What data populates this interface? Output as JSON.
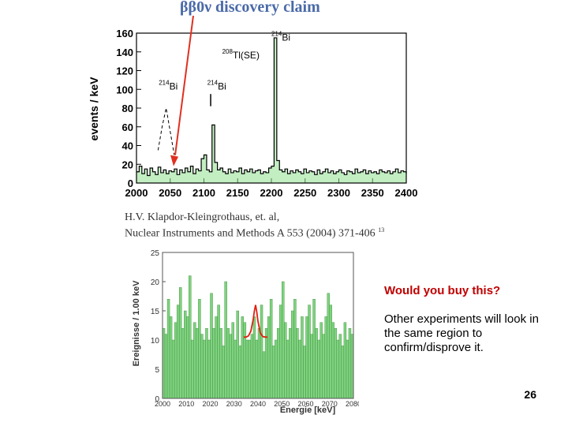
{
  "slide": {
    "title": "ββ0ν discovery claim",
    "citation_line1": "H.V. Klapdor-Kleingrothaus, et. al,",
    "citation_line2": "Nuclear Instruments and Methods A 553 (2004) 371-406",
    "citation_sup": "13",
    "question": "Would you buy this?",
    "body": "Other experiments will look in the same region to confirm/disprove it.",
    "page_number": "26"
  },
  "colors": {
    "title": "#4a6aa8",
    "arrow": "#e03020",
    "question": "#c00000",
    "bars_fill": "#7fd27f",
    "bars_edge": "#3a8a3a",
    "fit_curve": "#e02010"
  },
  "chart_data": [
    {
      "type": "line",
      "title": "",
      "xlabel": "",
      "ylabel": "events / keV",
      "xlim": [
        2000,
        2400
      ],
      "ylim": [
        0,
        160
      ],
      "xticks": [
        2000,
        2050,
        2100,
        2150,
        2200,
        2250,
        2300,
        2350,
        2400
      ],
      "yticks": [
        0,
        20,
        40,
        60,
        80,
        100,
        120,
        140,
        160
      ],
      "series": [
        {
          "name": "spectrum",
          "x": [
            2000,
            2004,
            2008,
            2012,
            2016,
            2020,
            2024,
            2028,
            2032,
            2036,
            2040,
            2044,
            2048,
            2052,
            2056,
            2060,
            2064,
            2068,
            2072,
            2076,
            2080,
            2084,
            2088,
            2092,
            2096,
            2100,
            2104,
            2108,
            2112,
            2116,
            2120,
            2124,
            2128,
            2132,
            2136,
            2140,
            2144,
            2148,
            2152,
            2156,
            2160,
            2164,
            2168,
            2172,
            2176,
            2180,
            2184,
            2188,
            2192,
            2196,
            2200,
            2204,
            2208,
            2212,
            2216,
            2220,
            2224,
            2228,
            2232,
            2236,
            2240,
            2244,
            2248,
            2252,
            2256,
            2260,
            2264,
            2268,
            2272,
            2276,
            2280,
            2284,
            2288,
            2292,
            2296,
            2300,
            2304,
            2308,
            2312,
            2316,
            2320,
            2324,
            2328,
            2332,
            2336,
            2340,
            2344,
            2348,
            2352,
            2356,
            2360,
            2364,
            2368,
            2372,
            2376,
            2380,
            2384,
            2388,
            2392,
            2396,
            2400
          ],
          "y": [
            12,
            18,
            10,
            15,
            8,
            16,
            12,
            9,
            17,
            11,
            14,
            10,
            13,
            12,
            15,
            9,
            14,
            11,
            16,
            12,
            18,
            10,
            15,
            13,
            26,
            30,
            14,
            12,
            62,
            22,
            14,
            16,
            12,
            10,
            15,
            11,
            13,
            12,
            16,
            10,
            14,
            12,
            15,
            11,
            13,
            14,
            10,
            12,
            11,
            16,
            18,
            155,
            24,
            14,
            12,
            15,
            10,
            13,
            11,
            14,
            12,
            10,
            15,
            11,
            13,
            12,
            9,
            14,
            10,
            12,
            15,
            11,
            13,
            10,
            12,
            14,
            11,
            9,
            13,
            12,
            10,
            15,
            11,
            12,
            14,
            10,
            13,
            11,
            12,
            10,
            14,
            12,
            11,
            13,
            10,
            12,
            15,
            11,
            13,
            12,
            10
          ]
        }
      ],
      "dashed_peak": {
        "x": [
          2032,
          2038,
          2044,
          2050,
          2056
        ],
        "y": [
          35,
          60,
          80,
          55,
          30
        ]
      },
      "annotations": [
        {
          "label_sup": "214",
          "label": "Bi",
          "x": 2033,
          "y": 100
        },
        {
          "label_sup": "214",
          "label": "Bi",
          "x": 2105,
          "y": 100
        },
        {
          "label_sup": "208",
          "label": "Tl(SE)",
          "x": 2127,
          "y": 133
        },
        {
          "label_sup": "214",
          "label": "Bi",
          "x": 2200,
          "y": 152
        }
      ],
      "arrow_target": {
        "x": 2055,
        "y": 18
      }
    },
    {
      "type": "bar",
      "title": "",
      "xlabel": "Energie [keV]",
      "ylabel": "Ereignisse / 1.00 keV",
      "xlim": [
        2000,
        2080
      ],
      "ylim": [
        0,
        25
      ],
      "xticks": [
        2000,
        2010,
        2020,
        2030,
        2040,
        2050,
        2060,
        2070,
        2080
      ],
      "yticks": [
        0,
        5,
        10,
        15,
        20,
        25
      ],
      "categories": [
        2000,
        2001,
        2002,
        2003,
        2004,
        2005,
        2006,
        2007,
        2008,
        2009,
        2010,
        2011,
        2012,
        2013,
        2014,
        2015,
        2016,
        2017,
        2018,
        2019,
        2020,
        2021,
        2022,
        2023,
        2024,
        2025,
        2026,
        2027,
        2028,
        2029,
        2030,
        2031,
        2032,
        2033,
        2034,
        2035,
        2036,
        2037,
        2038,
        2039,
        2040,
        2041,
        2042,
        2043,
        2044,
        2045,
        2046,
        2047,
        2048,
        2049,
        2050,
        2051,
        2052,
        2053,
        2054,
        2055,
        2056,
        2057,
        2058,
        2059,
        2060,
        2061,
        2062,
        2063,
        2064,
        2065,
        2066,
        2067,
        2068,
        2069,
        2070,
        2071,
        2072,
        2073,
        2074,
        2075,
        2076,
        2077,
        2078,
        2079
      ],
      "values": [
        12,
        11,
        17,
        14,
        10,
        13,
        16,
        19,
        12,
        15,
        14,
        21,
        10,
        13,
        12,
        17,
        11,
        10,
        12,
        10,
        18,
        12,
        14,
        16,
        12,
        9,
        20,
        12,
        11,
        13,
        10,
        15,
        9,
        14,
        13,
        10,
        10,
        11,
        14,
        10,
        12,
        16,
        8,
        12,
        14,
        17,
        9,
        10,
        12,
        16,
        20,
        13,
        10,
        12,
        15,
        17,
        12,
        10,
        14,
        9,
        14,
        16,
        11,
        17,
        12,
        10,
        13,
        11,
        14,
        18,
        16,
        13,
        12,
        10,
        11,
        9,
        13,
        10,
        12,
        11
      ],
      "fit_curve": {
        "x": [
          2034,
          2035,
          2036,
          2037,
          2038,
          2038.5,
          2039,
          2039.5,
          2040,
          2041,
          2042,
          2043,
          2044
        ],
        "y": [
          10.5,
          10.5,
          10.7,
          11.5,
          13.5,
          15.0,
          16.0,
          14.8,
          13.2,
          11.2,
          10.6,
          10.5,
          10.5
        ]
      }
    }
  ]
}
